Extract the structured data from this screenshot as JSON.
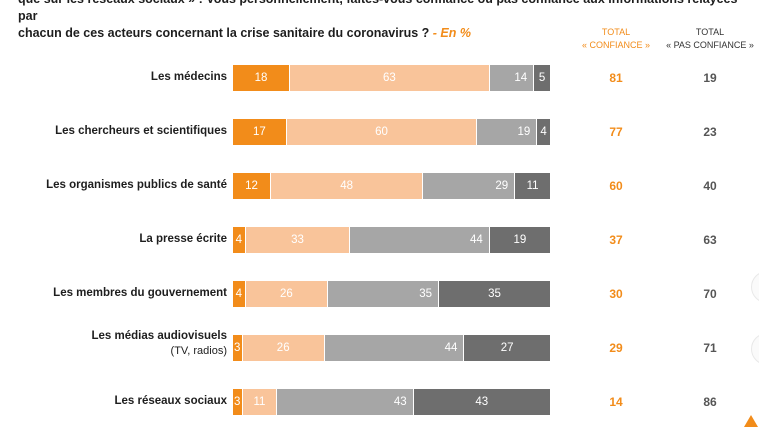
{
  "question": {
    "line1": "que sur les réseaux sociaux » : Vous personnellement, faites-vous confiance ou pas confiance aux informations relayées par",
    "line2": "chacun de ces acteurs concernant la crise sanitaire du coronavirus ?",
    "unit": "- En %"
  },
  "headers": {
    "total_confiance_1": "TOTAL",
    "total_confiance_2": "« CONFIANCE »",
    "total_pas_1": "TOTAL",
    "total_pas_2": "« PAS CONFIANCE »"
  },
  "colors": {
    "tout_a_fait_confiance": "#f28c1a",
    "plutot_confiance": "#f9c49a",
    "plutot_pas_confiance": "#a6a6a6",
    "pas_du_tout_confiance": "#6e6e6e",
    "total_confiance_text": "#f28c1a",
    "total_pas_text": "#555555"
  },
  "chart_data": {
    "type": "bar",
    "orientation": "horizontal",
    "stacked": true,
    "categories": [
      "Les médecins",
      "Les chercheurs et scientifiques",
      "Les organismes publics de santé",
      "La presse écrite",
      "Les membres du gouvernement",
      "Les médias audiovisuels",
      "Les réseaux sociaux"
    ],
    "category_sublabels": [
      "",
      "",
      "",
      "",
      "",
      "(TV, radios)",
      ""
    ],
    "series": [
      {
        "name": "s1",
        "values": [
          18,
          17,
          12,
          4,
          4,
          3,
          3
        ]
      },
      {
        "name": "s2",
        "values": [
          63,
          60,
          48,
          33,
          26,
          26,
          11
        ]
      },
      {
        "name": "s3",
        "values": [
          14,
          19,
          29,
          44,
          35,
          44,
          43
        ]
      },
      {
        "name": "s4",
        "values": [
          5,
          4,
          11,
          19,
          35,
          27,
          43
        ]
      }
    ],
    "total_confiance": [
      "81",
      "77",
      "60",
      "37",
      "30",
      "29",
      "14"
    ],
    "total_pas_confiance": [
      "19",
      "23",
      "40",
      "63",
      "70",
      "71",
      "86"
    ],
    "unit": "%",
    "xlim": [
      0,
      100
    ]
  }
}
